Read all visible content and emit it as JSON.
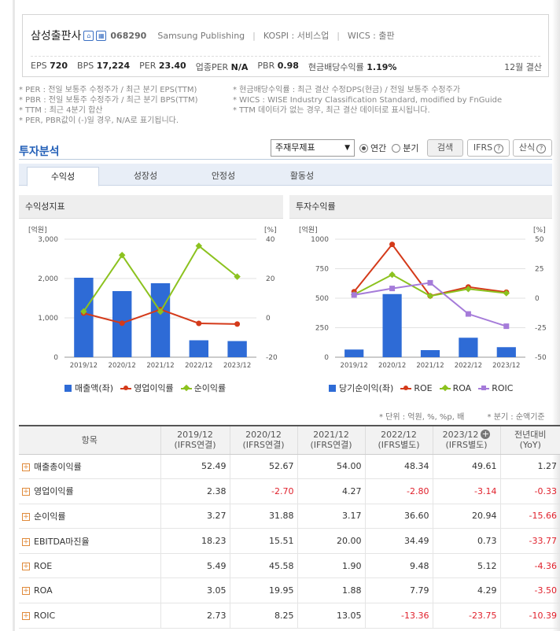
{
  "header": {
    "company_name": "삼성출판사",
    "code": "068290",
    "name_en": "Samsung Publishing",
    "market": "KOSPI : 서비스업",
    "wics": "WICS : 출판",
    "metrics": [
      {
        "label": "EPS",
        "value": "720"
      },
      {
        "label": "BPS",
        "value": "17,224"
      },
      {
        "label": "PER",
        "value": "23.40"
      },
      {
        "label": "업종PER",
        "value": "N/A"
      },
      {
        "label": "PBR",
        "value": "0.98"
      },
      {
        "label": "현금배당수익률",
        "value": "1.19%"
      }
    ],
    "settlement": "12월 결산"
  },
  "notes": {
    "left": [
      "* PER : 전일 보통주 수정주가 / 최근 분기 EPS(TTM)",
      "* PBR : 전일 보통주 수정주가 / 최근 분기 BPS(TTM)",
      "* TTM : 최근 4분기 합산",
      "* PER, PBR값이 (-)일 경우, N/A로 표기됩니다."
    ],
    "right": [
      "* 현금배당수익률 : 최근 결산 수정DPS(현금) / 전일 보통주 수정주가",
      "* WICS : WISE Industry Classification Standard, modified by FnGuide",
      "* TTM 데이터가 없는 경우, 최근 결산 데이터로 표시됩니다."
    ]
  },
  "analysis": {
    "title": "투자분석",
    "select_value": "주재무제표",
    "radio_annual": "연간",
    "radio_quarter": "분기",
    "search_button": "검색",
    "ifrs_button": "IFRS",
    "formula_button": "산식"
  },
  "tabs": [
    "수익성",
    "성장성",
    "안정성",
    "활동성"
  ],
  "chart_left": {
    "title": "수익성지표",
    "left_unit": "[억원]",
    "right_unit": "[%]",
    "legend": [
      "매출액(좌)",
      "영업이익률",
      "순이익률"
    ]
  },
  "chart_right": {
    "title": "투자수익률",
    "left_unit": "[억원]",
    "right_unit": "[%]",
    "legend": [
      "당기순이익(좌)",
      "ROE",
      "ROA",
      "ROIC"
    ]
  },
  "colors": {
    "bar": "#2e6bd6",
    "op_margin": "#d43a1a",
    "net_margin": "#8cc21f",
    "roe": "#d43a1a",
    "roa": "#8cc21f",
    "roic": "#a57bd9"
  },
  "chart_data": [
    {
      "type": "bar",
      "title": "수익성지표",
      "categories": [
        "2019/12",
        "2020/12",
        "2021/12",
        "2022/12",
        "2023/12"
      ],
      "bars": {
        "name": "매출액(좌)",
        "values": [
          2020,
          1680,
          1880,
          430,
          410
        ]
      },
      "series": [
        {
          "name": "영업이익률",
          "values": [
            2.38,
            -2.7,
            4.27,
            -2.8,
            -3.14
          ]
        },
        {
          "name": "순이익률",
          "values": [
            3.27,
            31.88,
            3.17,
            36.6,
            20.94
          ]
        }
      ],
      "ylim_left": [
        0,
        3000
      ],
      "yticks_left": [
        "0",
        "1,000",
        "2,000",
        "3,000"
      ],
      "ylim_right": [
        -20,
        40
      ],
      "yticks_right": [
        "-20",
        "0",
        "20",
        "40"
      ]
    },
    {
      "type": "bar",
      "title": "투자수익률",
      "categories": [
        "2019/12",
        "2020/12",
        "2021/12",
        "2022/12",
        "2023/12"
      ],
      "bars": {
        "name": "당기순이익(좌)",
        "values": [
          65,
          535,
          60,
          165,
          85
        ]
      },
      "series": [
        {
          "name": "ROE",
          "values": [
            5.49,
            45.58,
            1.9,
            9.48,
            5.12
          ]
        },
        {
          "name": "ROA",
          "values": [
            3.05,
            19.95,
            1.88,
            7.79,
            4.29
          ]
        },
        {
          "name": "ROIC",
          "values": [
            2.73,
            8.25,
            13.05,
            -13.36,
            -23.75
          ]
        }
      ],
      "ylim_left": [
        0,
        1000
      ],
      "yticks_left": [
        "0",
        "250",
        "500",
        "750",
        "1000"
      ],
      "ylim_right": [
        -50,
        50
      ],
      "yticks_right": [
        "-50",
        "-25",
        "0",
        "25",
        "50"
      ]
    }
  ],
  "table": {
    "unit_note": "* 단위 : 억원, %, %p, 배",
    "basis_note": "* 분기 : 순액기준",
    "headers": [
      {
        "line1": "항목",
        "line2": ""
      },
      {
        "line1": "2019/12",
        "line2": "(IFRS연결)"
      },
      {
        "line1": "2020/12",
        "line2": "(IFRS연결)"
      },
      {
        "line1": "2021/12",
        "line2": "(IFRS연결)"
      },
      {
        "line1": "2022/12",
        "line2": "(IFRS별도)"
      },
      {
        "line1": "2023/12",
        "line2": "(IFRS별도)"
      },
      {
        "line1": "전년대비",
        "line2": "(YoY)"
      }
    ],
    "rows": [
      {
        "label": "매출총이익률",
        "values": [
          "52.49",
          "52.67",
          "54.00",
          "48.34",
          "49.61",
          "1.27"
        ]
      },
      {
        "label": "영업이익률",
        "values": [
          "2.38",
          "-2.70",
          "4.27",
          "-2.80",
          "-3.14",
          "-0.33"
        ]
      },
      {
        "label": "순이익률",
        "values": [
          "3.27",
          "31.88",
          "3.17",
          "36.60",
          "20.94",
          "-15.66"
        ]
      },
      {
        "label": "EBITDA마진율",
        "values": [
          "18.23",
          "15.51",
          "20.00",
          "34.49",
          "0.73",
          "-33.77"
        ]
      },
      {
        "label": "ROE",
        "values": [
          "5.49",
          "45.58",
          "1.90",
          "9.48",
          "5.12",
          "-4.36"
        ]
      },
      {
        "label": "ROA",
        "values": [
          "3.05",
          "19.95",
          "1.88",
          "7.79",
          "4.29",
          "-3.50"
        ]
      },
      {
        "label": "ROIC",
        "values": [
          "2.73",
          "8.25",
          "13.05",
          "-13.36",
          "-23.75",
          "-10.39"
        ]
      }
    ]
  }
}
